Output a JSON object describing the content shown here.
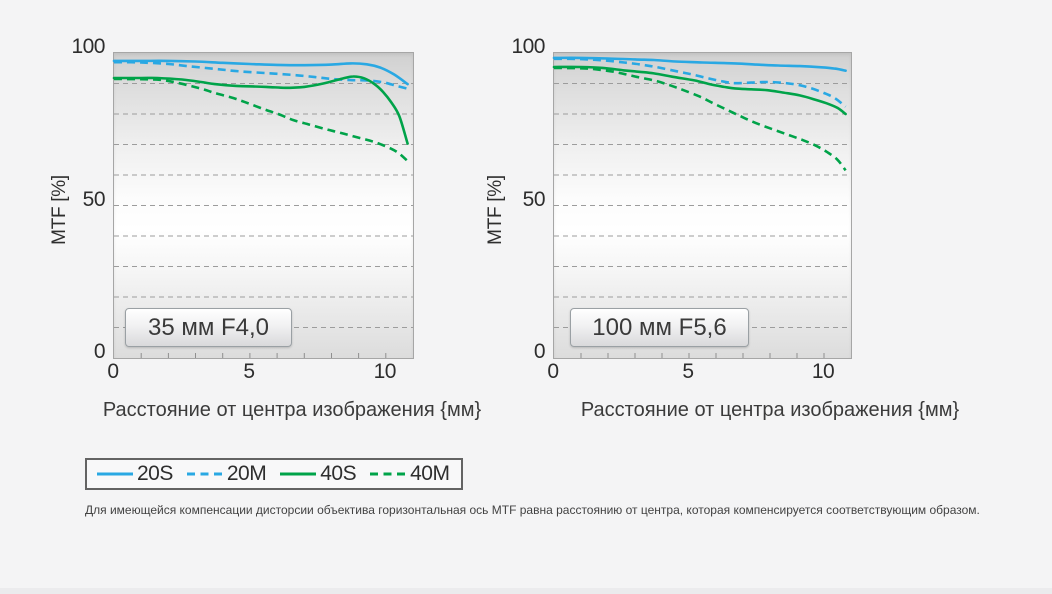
{
  "colors": {
    "blue": "#29A8E3",
    "green": "#00A349",
    "grid": "#9C9C9C",
    "plot_border": "#A6A6A6",
    "tick": "#8F8F8F",
    "page_bg": "#F4F4F5"
  },
  "legend": {
    "items": [
      {
        "label": "20S",
        "color": "blue",
        "dashed": false
      },
      {
        "label": "20M",
        "color": "blue",
        "dashed": true
      },
      {
        "label": "40S",
        "color": "green",
        "dashed": false
      },
      {
        "label": "40M",
        "color": "green",
        "dashed": true
      }
    ]
  },
  "footnote": "Для имеющейся компенсации дисторсии объектива горизонтальная ось MTF равна расстоянию от центра, которая компенсируется соответствующим образом.",
  "chart_data": [
    {
      "type": "line",
      "title": "35 мм F4,0",
      "xlabel": "Расстояние от центра изображения {мм}",
      "ylabel": "MTF [%]",
      "xlim": [
        0,
        11
      ],
      "ylim": [
        0,
        100
      ],
      "xticks": [
        0,
        5,
        10
      ],
      "yticks": [
        0,
        50,
        100
      ],
      "grid": {
        "horizontal_step": 10,
        "style": "dashed"
      },
      "series": [
        {
          "name": "20S",
          "color": "blue",
          "style": "solid",
          "points": [
            [
              0,
              97.4
            ],
            [
              1,
              97.4
            ],
            [
              2,
              97.4
            ],
            [
              3,
              97.2
            ],
            [
              4,
              96.8
            ],
            [
              5,
              96.4
            ],
            [
              6,
              96.1
            ],
            [
              7,
              96.0
            ],
            [
              8,
              96.2
            ],
            [
              8.7,
              96.6
            ],
            [
              9.3,
              96.3
            ],
            [
              9.8,
              95.2
            ],
            [
              10.3,
              93.0
            ],
            [
              10.8,
              89.8
            ]
          ]
        },
        {
          "name": "20M",
          "color": "blue",
          "style": "dashed",
          "points": [
            [
              0,
              97.0
            ],
            [
              1,
              96.9
            ],
            [
              2,
              96.4
            ],
            [
              2.7,
              95.7
            ],
            [
              3.7,
              94.8
            ],
            [
              4.6,
              94.0
            ],
            [
              5.6,
              93.4
            ],
            [
              6.6,
              92.8
            ],
            [
              7.4,
              92.1
            ],
            [
              8,
              91.5
            ],
            [
              8.7,
              91.1
            ],
            [
              9.3,
              91.0
            ],
            [
              9.9,
              90.4
            ],
            [
              10.4,
              89.2
            ],
            [
              10.8,
              88.3
            ]
          ]
        },
        {
          "name": "40S",
          "color": "green",
          "style": "solid",
          "points": [
            [
              0,
              91.8
            ],
            [
              1,
              91.8
            ],
            [
              1.6,
              91.8
            ],
            [
              2.5,
              91.3
            ],
            [
              3.2,
              90.5
            ],
            [
              3.7,
              89.8
            ],
            [
              4.5,
              89.2
            ],
            [
              5.6,
              88.9
            ],
            [
              6.3,
              88.6
            ],
            [
              7,
              88.9
            ],
            [
              7.7,
              90.0
            ],
            [
              8.4,
              91.6
            ],
            [
              8.8,
              92.3
            ],
            [
              9.2,
              91.7
            ],
            [
              9.6,
              89.7
            ],
            [
              9.9,
              87.2
            ],
            [
              10.2,
              83.8
            ],
            [
              10.5,
              79.2
            ],
            [
              10.8,
              70.3
            ]
          ]
        },
        {
          "name": "40M",
          "color": "green",
          "style": "dashed",
          "points": [
            [
              0,
              91.5
            ],
            [
              1,
              91.4
            ],
            [
              1.7,
              91.2
            ],
            [
              2.3,
              90.3
            ],
            [
              2.9,
              89.0
            ],
            [
              3.4,
              87.8
            ],
            [
              3.7,
              86.9
            ],
            [
              4.4,
              85.2
            ],
            [
              5,
              83.3
            ],
            [
              5.6,
              81.3
            ],
            [
              6.1,
              79.8
            ],
            [
              6.6,
              78.0
            ],
            [
              7.2,
              76.5
            ],
            [
              7.8,
              75.0
            ],
            [
              8.3,
              73.9
            ],
            [
              8.8,
              72.7
            ],
            [
              9.4,
              71.3
            ],
            [
              9.8,
              70.1
            ],
            [
              10.2,
              68.6
            ],
            [
              10.5,
              67.0
            ],
            [
              10.8,
              64.6
            ]
          ]
        }
      ]
    },
    {
      "type": "line",
      "title": "100 мм F5,6",
      "xlabel": "Расстояние от центра изображения {мм}",
      "ylabel": "MTF [%]",
      "xlim": [
        0,
        11
      ],
      "ylim": [
        0,
        100
      ],
      "xticks": [
        0,
        5,
        10
      ],
      "yticks": [
        0,
        50,
        100
      ],
      "grid": {
        "horizontal_step": 10,
        "style": "dashed"
      },
      "series": [
        {
          "name": "20S",
          "color": "blue",
          "style": "solid",
          "points": [
            [
              0,
              98.4
            ],
            [
              1,
              98.4
            ],
            [
              2,
              98.2
            ],
            [
              3,
              97.9
            ],
            [
              3.7,
              97.7
            ],
            [
              4.5,
              97.2
            ],
            [
              5.5,
              96.9
            ],
            [
              6.7,
              96.6
            ],
            [
              7.5,
              96.2
            ],
            [
              8.3,
              95.9
            ],
            [
              9.1,
              95.7
            ],
            [
              9.9,
              95.3
            ],
            [
              10.4,
              94.9
            ],
            [
              10.8,
              94.2
            ]
          ]
        },
        {
          "name": "20M",
          "color": "blue",
          "style": "dashed",
          "points": [
            [
              0,
              98.1
            ],
            [
              1,
              98.0
            ],
            [
              1.8,
              97.6
            ],
            [
              2.6,
              96.9
            ],
            [
              3.3,
              96.1
            ],
            [
              3.9,
              95.2
            ],
            [
              4.6,
              93.9
            ],
            [
              5.2,
              92.8
            ],
            [
              5.8,
              91.5
            ],
            [
              6.3,
              90.6
            ],
            [
              6.7,
              90.1
            ],
            [
              7.3,
              90.3
            ],
            [
              7.9,
              90.5
            ],
            [
              8.5,
              90.2
            ],
            [
              9,
              89.6
            ],
            [
              9.5,
              88.5
            ],
            [
              10,
              86.9
            ],
            [
              10.4,
              85.2
            ],
            [
              10.8,
              82.4
            ]
          ]
        },
        {
          "name": "40S",
          "color": "green",
          "style": "solid",
          "points": [
            [
              0,
              95.4
            ],
            [
              1,
              95.4
            ],
            [
              1.8,
              95.1
            ],
            [
              2.6,
              94.3
            ],
            [
              3.2,
              93.8
            ],
            [
              3.7,
              93.3
            ],
            [
              4.4,
              92.2
            ],
            [
              5.2,
              91.0
            ],
            [
              5.8,
              89.7
            ],
            [
              6.3,
              88.9
            ],
            [
              6.7,
              88.4
            ],
            [
              7.3,
              88.1
            ],
            [
              7.9,
              87.8
            ],
            [
              8.5,
              87.0
            ],
            [
              9.1,
              86.1
            ],
            [
              9.6,
              84.9
            ],
            [
              10.1,
              83.5
            ],
            [
              10.5,
              82.0
            ],
            [
              10.8,
              80.0
            ]
          ]
        },
        {
          "name": "40M",
          "color": "green",
          "style": "dashed",
          "points": [
            [
              0,
              95.1
            ],
            [
              1,
              95.0
            ],
            [
              1.6,
              94.6
            ],
            [
              2.3,
              93.7
            ],
            [
              3,
              92.3
            ],
            [
              3.7,
              91.0
            ],
            [
              4.3,
              89.4
            ],
            [
              4.8,
              87.8
            ],
            [
              5.4,
              85.7
            ],
            [
              5.9,
              83.5
            ],
            [
              6.4,
              81.4
            ],
            [
              6.9,
              79.3
            ],
            [
              7.4,
              77.3
            ],
            [
              8,
              75.3
            ],
            [
              8.6,
              73.4
            ],
            [
              9.2,
              71.5
            ],
            [
              9.7,
              69.6
            ],
            [
              10.1,
              67.6
            ],
            [
              10.5,
              65.0
            ],
            [
              10.8,
              61.5
            ]
          ]
        }
      ]
    }
  ]
}
